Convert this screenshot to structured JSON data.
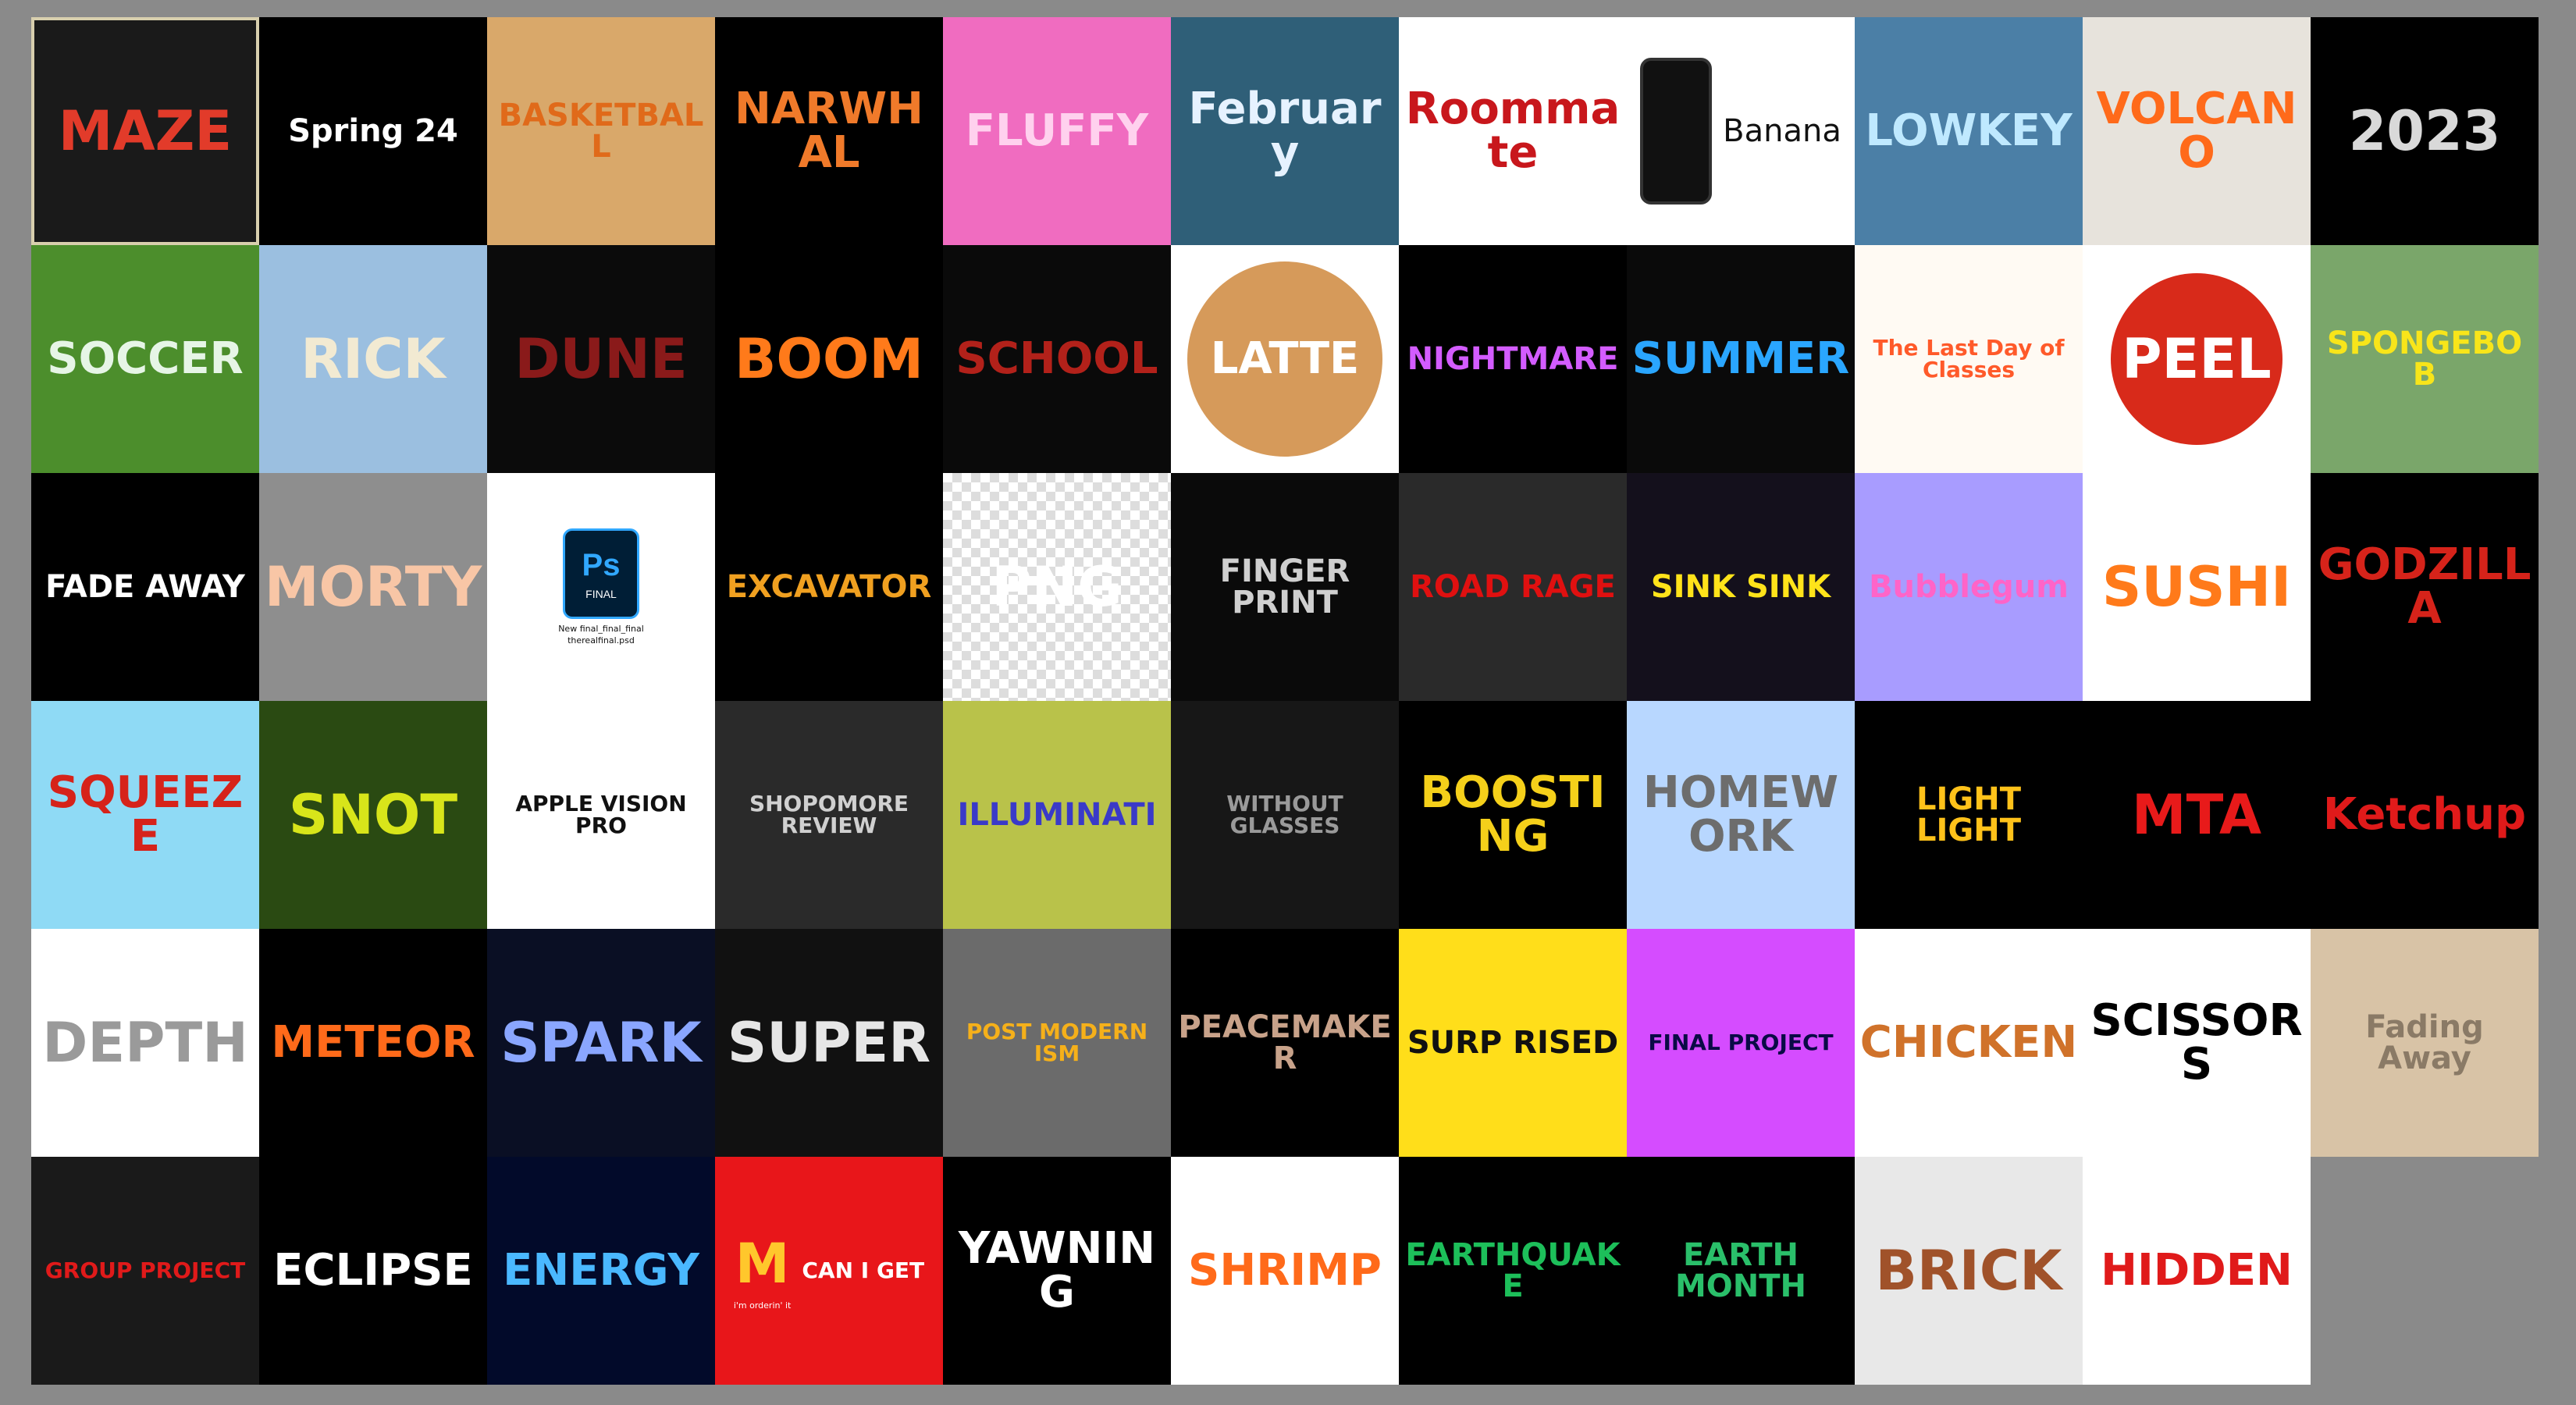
{
  "tiles": [
    {
      "label": "MAZE",
      "bg": "#1a1a1a",
      "fg": "#e23b2a"
    },
    {
      "label": "Spring 24",
      "bg": "#000000",
      "fg": "#ffffff"
    },
    {
      "label": "BASKETBALL",
      "bg": "#d9a86a",
      "fg": "#e06a1a"
    },
    {
      "label": "NARWHAL",
      "bg": "#000000",
      "fg": "#f07a2a"
    },
    {
      "label": "FLUFFY",
      "bg": "#f06cc0",
      "fg": "#ffd1ee"
    },
    {
      "label": "February",
      "bg": "#2f5f78",
      "fg": "#e6f2ff"
    },
    {
      "label": "Roommate",
      "bg": "#ffffff",
      "fg": "#c8171c"
    },
    {
      "label": "Banana",
      "bg": "#ffffff",
      "fg": "#111111"
    },
    {
      "label": "LOWKEY",
      "bg": "#4b7fa6",
      "fg": "#bfe9ff"
    },
    {
      "label": "VOLCANO",
      "bg": "#e7e3dc",
      "fg": "#ff6a1a"
    },
    {
      "label": "2023",
      "bg": "#000000",
      "fg": "#d9d9d9"
    },
    {
      "label": "SOCCER",
      "bg": "#4c8e2c",
      "fg": "#e6f5e6"
    },
    {
      "label": "RICK",
      "bg": "#9bbfe0",
      "fg": "#f2ead2"
    },
    {
      "label": "DUNE",
      "bg": "#0b0b0b",
      "fg": "#8a1a1a"
    },
    {
      "label": "BOOM",
      "bg": "#000000",
      "fg": "#ff7a1a"
    },
    {
      "label": "SCHOOL",
      "bg": "#0a0a0a",
      "fg": "#b2211a"
    },
    {
      "label": "LATTE",
      "bg": "#ffffff",
      "fg": "#ffffff"
    },
    {
      "label": "NIGHTMARE",
      "bg": "#000000",
      "fg": "#d35cff"
    },
    {
      "label": "SUMMER",
      "bg": "#0a0a0a",
      "fg": "#2aa6ff"
    },
    {
      "label": "The Last Day of Classes",
      "bg": "#fffaf3",
      "fg": "#ff5a2a"
    },
    {
      "label": "PEEL",
      "bg": "#ffffff",
      "fg": "#ffffff"
    },
    {
      "label": "SPONGEBOB",
      "bg": "#7aa66a",
      "fg": "#f8e51a"
    },
    {
      "label": "FADE AWAY",
      "bg": "#000000",
      "fg": "#ffffff"
    },
    {
      "label": "MORTY",
      "bg": "#8e8e8e",
      "fg": "#f8c6a6"
    },
    {
      "label": "FINAL",
      "bg": "#ffffff",
      "fg": "#31a8ff"
    },
    {
      "label": "EXCAVATOR",
      "bg": "#000000",
      "fg": "#f0a020"
    },
    {
      "label": "PNG",
      "bg": "checker",
      "fg": "#ffffff"
    },
    {
      "label": "FINGER PRINT",
      "bg": "#0a0a0a",
      "fg": "#cfcfcf"
    },
    {
      "label": "ROAD RAGE",
      "bg": "#2a2a2a",
      "fg": "#e01010"
    },
    {
      "label": "SINK SINK",
      "bg": "#14101c",
      "fg": "#ffe31a"
    },
    {
      "label": "Bubblegum",
      "bg": "#a89cff",
      "fg": "#ff64c8"
    },
    {
      "label": "SUSHI",
      "bg": "#ffffff",
      "fg": "#ff7a1a"
    },
    {
      "label": "GODZILLA",
      "bg": "#000000",
      "fg": "#d6231a"
    },
    {
      "label": "SQUEEZE",
      "bg": "#8fdaf5",
      "fg": "#d6231a"
    },
    {
      "label": "SNOT",
      "bg": "#2a4a12",
      "fg": "#d8e51a"
    },
    {
      "label": "APPLE VISION PRO",
      "bg": "#ffffff",
      "fg": "#111111"
    },
    {
      "label": "SHOPOMORE REVIEW",
      "bg": "#2a2a2a",
      "fg": "#d0d0d0"
    },
    {
      "label": "ILLUMINATI",
      "bg": "#b9c24a",
      "fg": "#3a3ac8"
    },
    {
      "label": "WITHOUT GLASSES",
      "bg": "#171717",
      "fg": "#9a9a9a"
    },
    {
      "label": "BOOSTING",
      "bg": "#000000",
      "fg": "#f5d01a"
    },
    {
      "label": "HOMEWORK",
      "bg": "#b8d7ff",
      "fg": "#6d6d6d"
    },
    {
      "label": "LIGHT LIGHT",
      "bg": "#000000",
      "fg": "#ffc21a"
    },
    {
      "label": "MTA",
      "bg": "#000000",
      "fg": "#e81a1a"
    },
    {
      "label": "Ketchup",
      "bg": "#000000",
      "fg": "#e01a1a"
    },
    {
      "label": "DEPTH",
      "bg": "#ffffff",
      "fg": "#9a9a9a"
    },
    {
      "label": "METEOR",
      "bg": "#000000",
      "fg": "#ff6a1a"
    },
    {
      "label": "SPARK",
      "bg": "#0a0f24",
      "fg": "#8aa6ff"
    },
    {
      "label": "SUPER",
      "bg": "#111111",
      "fg": "#e6e6e6"
    },
    {
      "label": "POST MODERN ISM",
      "bg": "#6b6b6b",
      "fg": "#f5b01a"
    },
    {
      "label": "PEACEMAKER",
      "bg": "#000000",
      "fg": "#c8a28a"
    },
    {
      "label": "SURP RISED",
      "bg": "#ffde1a",
      "fg": "#111111"
    },
    {
      "label": "FINAL PROJECT",
      "bg": "#d54cff",
      "fg": "#0a0a46"
    },
    {
      "label": "CHICKEN",
      "bg": "#ffffff",
      "fg": "#d0722a"
    },
    {
      "label": "SCISSORS",
      "bg": "#ffffff",
      "fg": "#000000"
    },
    {
      "label": "Fading Away",
      "bg": "#d8c3a6",
      "fg": "#8a7a66"
    },
    {
      "label": "GROUP PROJECT",
      "bg": "#1a1a1a",
      "fg": "#e01a1a"
    },
    {
      "label": "ECLIPSE",
      "bg": "#000000",
      "fg": "#ffffff"
    },
    {
      "label": "ENERGY",
      "bg": "#020a2a",
      "fg": "#4ab8ff"
    },
    {
      "label": "CAN I GET",
      "bg": "#e8161a",
      "fg": "#ffffff"
    },
    {
      "label": "YAWNING",
      "bg": "#000000",
      "fg": "#ffffff"
    },
    {
      "label": "SHRIMP",
      "bg": "#ffffff",
      "fg": "#ff6a1a"
    },
    {
      "label": "EARTHQUAKE",
      "bg": "#000000",
      "fg": "#1dbf5a"
    },
    {
      "label": "EARTH MONTH",
      "bg": "#000000",
      "fg": "#2abf6a"
    },
    {
      "label": "BRICK",
      "bg": "#e8e8e8",
      "fg": "#a0522a"
    },
    {
      "label": "HIDDEN",
      "bg": "#ffffff",
      "fg": "#e01a1a"
    }
  ],
  "extra_text": {
    "final_filename_line1": "New final_final_final",
    "final_filename_line2": "therealfinal.psd",
    "mcd_tagline": "i'm orderin' it"
  }
}
